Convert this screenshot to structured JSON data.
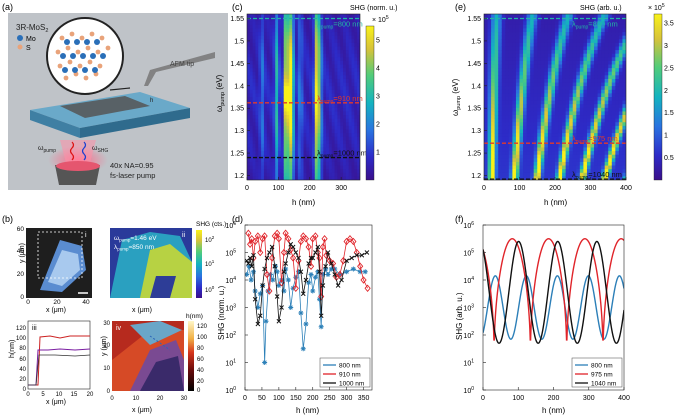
{
  "panel_labels": {
    "a": "(a)",
    "b": "(b)",
    "c": "(c)",
    "d": "(d)",
    "e": "(e)",
    "f": "(f)",
    "b_i": "i",
    "b_ii": "ii",
    "b_iii": "iii",
    "b_iv": "iv"
  },
  "schematic": {
    "material": "3R-MoS",
    "material_sub": "2",
    "legend_mo": "Mo",
    "legend_s": "S",
    "afm_tip": "AFM tip",
    "h_label": "h",
    "omega_pump": "ω",
    "omega_pump_sub": "pump",
    "omega_shg": "ω",
    "omega_shg_sub": "SHG",
    "objective": "40x NA=0.95",
    "laser": "fs-laser pump",
    "colors": {
      "mo": "#2a6fb8",
      "s": "#e9a37a",
      "substrate": "#6aa9c9",
      "flake": "#555555"
    }
  },
  "b_panels": {
    "i": {
      "ylabel": "y (μm)",
      "xlabel": "x (μm)",
      "xticks": [
        "0",
        "20",
        "40"
      ],
      "yticks": [
        "0",
        "20",
        "40",
        "60"
      ]
    },
    "ii": {
      "cbar_title": "SHG (cts.)",
      "cbar_ticks": [
        "10",
        "10",
        "10"
      ],
      "cbar_exps": [
        "2",
        "1",
        "0"
      ],
      "annotation_l1": "ω",
      "annotation_l1_sub": "pump",
      "annotation_l1_val": "=1.46 eV",
      "annotation_l2": "λ",
      "annotation_l2_sub": "pump",
      "annotation_l2_val": "=850 nm",
      "xlabel": "x (μm)"
    },
    "iii": {
      "ylabel": "h(nm)",
      "xlabel": "x (μm)",
      "xticks": [
        "0",
        "5",
        "10",
        "15",
        "20"
      ],
      "yticks": [
        "0",
        "20",
        "40",
        "60",
        "80",
        "100",
        "120"
      ]
    },
    "iv": {
      "cbar_title": "h(nm)",
      "cbar_ticks": [
        "120",
        "100",
        "80",
        "60",
        "40",
        "20",
        "0"
      ],
      "xlabel": "x (μm)",
      "ylabel": "y (μm)",
      "xticks": [
        "0",
        "10",
        "20",
        "30"
      ],
      "yticks": [
        "0",
        "10",
        "20",
        "30"
      ]
    }
  },
  "chart_data": [
    {
      "id": "c",
      "type": "heatmap",
      "title": "SHG (norm. u.)",
      "cbar_mult": "× 10",
      "cbar_mult_exp": "5",
      "cbar_ticks": [
        "1",
        "2",
        "3",
        "4",
        "5"
      ],
      "cbar_range": [
        0,
        5.5
      ],
      "xlabel": "h (nm)",
      "ylabel": "ω",
      "ylabel_sub": "pump",
      "ylabel_tail": " (eV)",
      "xticks": [
        "0",
        "100",
        "200",
        "300"
      ],
      "x_range": [
        0,
        360
      ],
      "yticks": [
        "1.2",
        "1.25",
        "1.3",
        "1.35",
        "1.4",
        "1.45",
        "1.5",
        "1.55"
      ],
      "y_range": [
        1.19,
        1.56
      ],
      "lines": [
        {
          "label": "λ",
          "sub": "pump",
          "val": "=800 nm",
          "y": 1.55,
          "color": "#22b5a5"
        },
        {
          "label": "λ",
          "sub": "pump",
          "val": "=910 nm",
          "y": 1.362,
          "color": "#e23a2a"
        },
        {
          "label": "λ",
          "sub": "pump",
          "val": "=1000 nm",
          "y": 1.24,
          "color": "#111111"
        }
      ]
    },
    {
      "id": "e",
      "type": "heatmap",
      "title": "SHG (arb. u.)",
      "cbar_mult": "× 10",
      "cbar_mult_exp": "5",
      "cbar_ticks": [
        "0.5",
        "1",
        "1.5",
        "2",
        "2.5",
        "3",
        "3.5"
      ],
      "cbar_range": [
        0,
        3.7
      ],
      "xlabel": "h (nm)",
      "ylabel": "ω",
      "ylabel_sub": "pump",
      "ylabel_tail": " (eV)",
      "xticks": [
        "0",
        "100",
        "200",
        "300",
        "400"
      ],
      "x_range": [
        0,
        400
      ],
      "yticks": [
        "1.2",
        "1.25",
        "1.3",
        "1.35",
        "1.4",
        "1.45",
        "1.5",
        "1.55"
      ],
      "y_range": [
        1.19,
        1.56
      ],
      "lines": [
        {
          "label": "λ",
          "sub": "pump",
          "val": "=800 nm",
          "y": 1.55,
          "color": "#22b5a5"
        },
        {
          "label": "λ",
          "sub": "pump",
          "val": "=975 nm",
          "y": 1.272,
          "color": "#e23a2a"
        },
        {
          "label": "λ",
          "sub": "pump",
          "val": "=1040 nm",
          "y": 1.192,
          "color": "#111111"
        }
      ]
    },
    {
      "id": "d",
      "type": "line",
      "log_y": true,
      "xlabel": "h (nm)",
      "ylabel": "SHG (norm. u.)",
      "xticks": [
        "0",
        "50",
        "100",
        "150",
        "200",
        "250",
        "300",
        "350"
      ],
      "x_range": [
        0,
        375
      ],
      "y_range_exp": [
        0,
        6
      ],
      "ytick_base": "10",
      "ytick_exps": [
        "0",
        "1",
        "2",
        "3",
        "4",
        "5",
        "6"
      ],
      "series": [
        {
          "name": "800 nm",
          "color": "#2c80b8",
          "marker": "star",
          "x": [
            5,
            12,
            18,
            25,
            30,
            38,
            45,
            52,
            58,
            62,
            68,
            75,
            82,
            90,
            95,
            100,
            108,
            115,
            120,
            128,
            135,
            142,
            150,
            158,
            165,
            172,
            180,
            188,
            195,
            200,
            208,
            215,
            220,
            225,
            230,
            238,
            245,
            255,
            265,
            280,
            300,
            320,
            340,
            355
          ],
          "y": [
            4.2,
            4.5,
            4.0,
            4.3,
            3.6,
            3.0,
            3.5,
            3.8,
            1.0,
            2.5,
            3.6,
            4.2,
            4.0,
            4.5,
            4.3,
            3.8,
            4.0,
            3.6,
            4.4,
            4.0,
            3.0,
            3.7,
            4.1,
            4.3,
            2.8,
            1.5,
            2.4,
            3.9,
            4.2,
            3.6,
            4.1,
            4.3,
            3.3,
            2.3,
            4.2,
            4.4,
            4.2,
            4.4,
            4.4,
            4.2,
            4.3,
            4.4,
            4.3,
            4.3
          ]
        },
        {
          "name": "910 nm",
          "color": "#e0242a",
          "marker": "diamond",
          "x": [
            10,
            15,
            20,
            25,
            30,
            38,
            45,
            52,
            58,
            65,
            72,
            80,
            88,
            95,
            100,
            108,
            115,
            120,
            128,
            135,
            142,
            150,
            158,
            165,
            172,
            180,
            188,
            195,
            200,
            208,
            215,
            220,
            225,
            230,
            235,
            240,
            250,
            260,
            270,
            280,
            290,
            300,
            310,
            320,
            330,
            340,
            350,
            362
          ],
          "y": [
            5.7,
            5.3,
            5.5,
            4.8,
            5.4,
            5.6,
            5.0,
            5.5,
            5.6,
            4.2,
            3.6,
            4.8,
            5.6,
            5.7,
            5.5,
            3.9,
            5.0,
            5.7,
            5.5,
            5.1,
            4.8,
            3.7,
            4.7,
            5.4,
            5.6,
            5.5,
            5.2,
            4.5,
            5.5,
            5.6,
            5.0,
            4.8,
            3.4,
            5.2,
            5.5,
            4.9,
            4.7,
            4.6,
            4.1,
            4.2,
            4.7,
            5.4,
            5.5,
            5.4,
            5.0,
            4.5,
            4.0,
            3.7
          ]
        },
        {
          "name": "1000 nm",
          "color": "#111111",
          "marker": "x",
          "x": [
            5,
            10,
            15,
            20,
            25,
            30,
            38,
            45,
            52,
            58,
            65,
            72,
            80,
            88,
            95,
            100,
            108,
            115,
            120,
            128,
            135,
            142,
            150,
            158,
            165,
            172,
            180,
            188,
            195,
            200,
            208,
            215,
            220,
            225,
            230,
            238,
            245,
            255,
            265,
            275,
            285,
            300,
            315,
            330,
            345,
            360
          ],
          "y": [
            4.7,
            4.6,
            4.8,
            4.5,
            4.9,
            3.3,
            2.4,
            2.7,
            3.8,
            4.4,
            4.8,
            5.0,
            5.2,
            4.5,
            3.4,
            2.5,
            3.0,
            4.3,
            4.6,
            5.0,
            5.3,
            5.2,
            5.0,
            4.8,
            4.3,
            3.5,
            4.0,
            4.6,
            4.8,
            4.8,
            5.0,
            5.2,
            4.3,
            2.7,
            3.8,
            4.5,
            5.0,
            4.6,
            4.2,
            3.8,
            4.0,
            4.7,
            4.8,
            4.9,
            4.9,
            5.0
          ]
        }
      ],
      "legend": [
        "800 nm",
        "910 nm",
        "1000 nm"
      ]
    },
    {
      "id": "f",
      "type": "line",
      "log_y": true,
      "xlabel": "h (nm)",
      "ylabel": "SHG (arb. u.)",
      "xticks": [
        "0",
        "100",
        "200",
        "300",
        "400"
      ],
      "x_range": [
        0,
        400
      ],
      "y_range_exp": [
        0,
        6
      ],
      "ytick_base": "10",
      "ytick_exps": [
        "0",
        "1",
        "2",
        "3",
        "4",
        "5",
        "6"
      ],
      "series": [
        {
          "name": "800 nm",
          "color": "#2c7fb8",
          "model": {
            "period": 88,
            "phase": 35,
            "min": 1.85,
            "max": 4.15,
            "sharp": 1.0
          }
        },
        {
          "name": "975 nm",
          "color": "#e0242a",
          "model": {
            "period": 103,
            "phase": -20,
            "min": 1.3,
            "max": 5.5,
            "sharp": 3.5
          }
        },
        {
          "name": "1040 nm",
          "color": "#111111",
          "model": {
            "period": 111,
            "phase": -10,
            "min": 1.7,
            "max": 5.4,
            "sharp": 1.8
          }
        }
      ],
      "legend": [
        "800 nm",
        "975 nm",
        "1040 nm"
      ]
    }
  ]
}
